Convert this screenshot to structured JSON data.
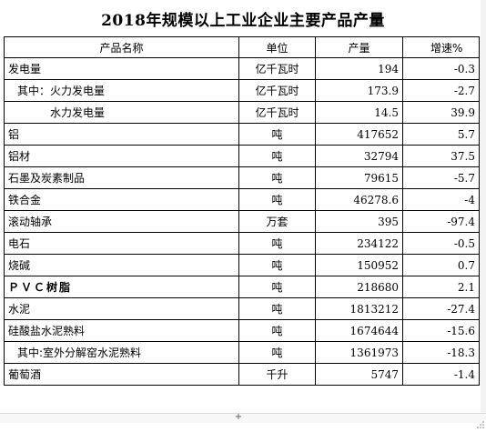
{
  "title": "2018年规模以上工业企业主要产品产量",
  "headers": {
    "name": "产品名称",
    "unit": "单位",
    "output": "产量",
    "growth": "增速%"
  },
  "rows": [
    {
      "name": "发电量",
      "unit": "亿千瓦时",
      "output": "194",
      "growth": "-0.3"
    },
    {
      "name": "其中：火力发电量",
      "unit": "亿千瓦时",
      "output": "173.9",
      "growth": "-2.7"
    },
    {
      "name": "水力发电量",
      "unit": "亿千瓦时",
      "output": "14.5",
      "growth": "39.9"
    },
    {
      "name": "铝",
      "unit": "吨",
      "output": "417652",
      "growth": "5.7"
    },
    {
      "name": "铝材",
      "unit": "吨",
      "output": "32794",
      "growth": "37.5"
    },
    {
      "name": "石墨及炭素制品",
      "unit": "吨",
      "output": "79615",
      "growth": "-5.7"
    },
    {
      "name": "铁合金",
      "unit": "吨",
      "output": "46278.6",
      "growth": "-4"
    },
    {
      "name": "滚动轴承",
      "unit": "万套",
      "output": "395",
      "growth": "-97.4"
    },
    {
      "name": "电石",
      "unit": "吨",
      "output": "234122",
      "growth": "-0.5"
    },
    {
      "name": "烧碱",
      "unit": "吨",
      "output": "150952",
      "growth": "0.7"
    },
    {
      "name": "ＰＶＣ树脂",
      "unit": "吨",
      "output": "218680",
      "growth": "2.1"
    },
    {
      "name": "水泥",
      "unit": "吨",
      "output": "1813212",
      "growth": "-27.4"
    },
    {
      "name": "硅酸盐水泥熟料",
      "unit": "吨",
      "output": "1674644",
      "growth": "-15.6"
    },
    {
      "name": "其中:室外分解窑水泥熟料",
      "unit": "吨",
      "output": "1361973",
      "growth": "-18.3"
    },
    {
      "name": "葡萄酒",
      "unit": "千升",
      "output": "5747",
      "growth": "-1.4"
    }
  ],
  "icons": {
    "add": "plus-icon",
    "resize": "resize-grip-icon"
  }
}
